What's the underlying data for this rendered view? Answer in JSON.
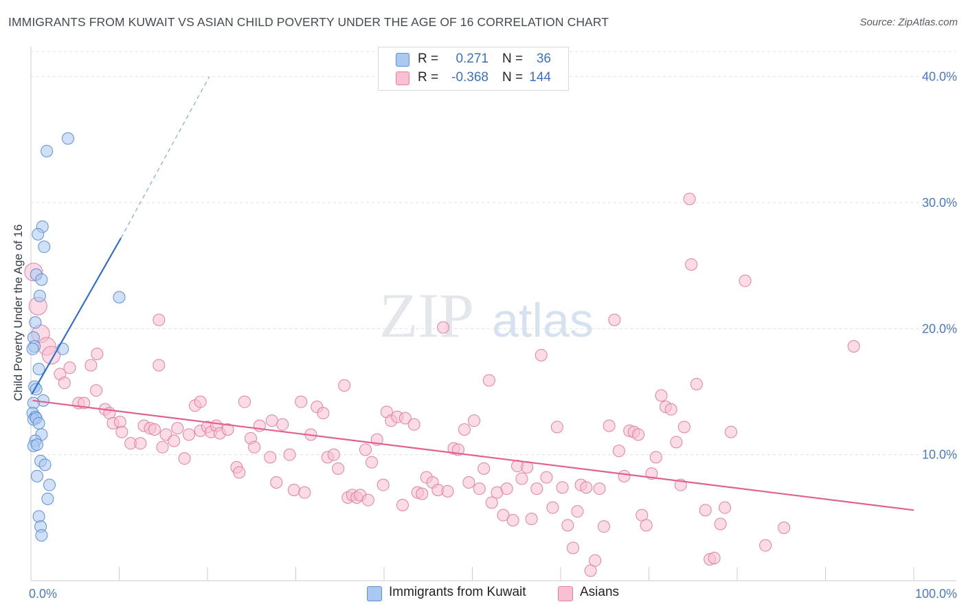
{
  "title": "IMMIGRANTS FROM KUWAIT VS ASIAN CHILD POVERTY UNDER THE AGE OF 16 CORRELATION CHART",
  "source": "Source: ZipAtlas.com",
  "watermark": {
    "zip": "ZIP",
    "atlas": "atlas"
  },
  "legend": {
    "rows": [
      {
        "r_label": "R =",
        "r_value": "0.271",
        "n_label": "N =",
        "n_value": "36",
        "color": "#aac8f0",
        "border": "#5b8fd6"
      },
      {
        "r_label": "R =",
        "r_value": "-0.368",
        "n_label": "N =",
        "n_value": "144",
        "color": "#f8c0d2",
        "border": "#e27fa2"
      }
    ]
  },
  "bottom_legend": [
    {
      "label": "Immigrants from Kuwait",
      "color": "#aac8f0",
      "border": "#5b8fd6"
    },
    {
      "label": "Asians",
      "color": "#f8c0d2",
      "border": "#e27fa2"
    }
  ],
  "chart_data": {
    "type": "scatter",
    "ylabel": "Child Poverty Under the Age of 16",
    "xlabel": "",
    "xlim": [
      0,
      100
    ],
    "ylim": [
      0,
      42
    ],
    "x_tick_labels": [
      {
        "value": 0,
        "label": "0.0%"
      },
      {
        "value": 100,
        "label": "100.0%"
      }
    ],
    "x_minor_ticks": [
      10,
      20,
      30,
      40,
      50,
      60,
      70,
      80,
      90,
      100
    ],
    "y_ticks": [
      {
        "value": 10,
        "label": "10.0%"
      },
      {
        "value": 20,
        "label": "20.0%"
      },
      {
        "value": 30,
        "label": "30.0%"
      },
      {
        "value": 40,
        "label": "40.0%"
      }
    ],
    "grid": true,
    "series": [
      {
        "name": "Immigrants from Kuwait",
        "color": "#aac8f0",
        "stroke": "#5b8fd6",
        "trend": {
          "x0": 0.1,
          "y0": 14.8,
          "x1": 10.2,
          "y1": 27.2,
          "dash_x1": 20.2,
          "dash_y1": 40.0,
          "color": "#2f6fd0"
        },
        "points": [
          [
            4.2,
            35.1
          ],
          [
            1.8,
            34.1
          ],
          [
            1.3,
            28.1
          ],
          [
            0.8,
            27.5
          ],
          [
            1.5,
            26.5
          ],
          [
            0.6,
            24.3
          ],
          [
            1.2,
            23.9
          ],
          [
            10.0,
            22.5
          ],
          [
            1.0,
            22.6
          ],
          [
            0.5,
            20.5
          ],
          [
            0.3,
            19.3
          ],
          [
            0.4,
            18.6
          ],
          [
            0.2,
            18.4
          ],
          [
            3.6,
            18.4
          ],
          [
            0.9,
            16.8
          ],
          [
            0.4,
            15.4
          ],
          [
            0.6,
            15.2
          ],
          [
            1.4,
            14.3
          ],
          [
            0.3,
            14.1
          ],
          [
            0.2,
            13.3
          ],
          [
            0.5,
            13.0
          ],
          [
            0.3,
            12.8
          ],
          [
            0.6,
            12.9
          ],
          [
            0.9,
            12.5
          ],
          [
            1.2,
            11.6
          ],
          [
            0.5,
            11.1
          ],
          [
            0.3,
            10.7
          ],
          [
            0.7,
            10.8
          ],
          [
            1.1,
            9.5
          ],
          [
            1.6,
            9.2
          ],
          [
            0.7,
            8.3
          ],
          [
            2.1,
            7.6
          ],
          [
            1.9,
            6.5
          ],
          [
            0.9,
            5.1
          ],
          [
            1.1,
            4.3
          ],
          [
            1.2,
            3.6
          ]
        ]
      },
      {
        "name": "Asians",
        "color": "#f8c0d2",
        "stroke": "#e27fa2",
        "trend": {
          "x0": 0.2,
          "y0": 14.3,
          "x1": 100,
          "y1": 5.6,
          "color": "#e26090"
        },
        "points": [
          [
            0.3,
            24.5
          ],
          [
            0.8,
            21.8
          ],
          [
            1.1,
            19.6
          ],
          [
            1.8,
            18.6
          ],
          [
            2.3,
            17.9
          ],
          [
            3.3,
            16.4
          ],
          [
            4.4,
            16.9
          ],
          [
            3.8,
            15.7
          ],
          [
            7.5,
            18.0
          ],
          [
            6.8,
            17.1
          ],
          [
            14.5,
            17.1
          ],
          [
            14.5,
            20.7
          ],
          [
            7.4,
            15.1
          ],
          [
            5.4,
            14.1
          ],
          [
            6.0,
            14.1
          ],
          [
            8.4,
            13.6
          ],
          [
            8.9,
            13.3
          ],
          [
            9.3,
            12.5
          ],
          [
            10.1,
            12.6
          ],
          [
            10.3,
            11.8
          ],
          [
            11.3,
            10.9
          ],
          [
            12.4,
            10.9
          ],
          [
            12.8,
            12.3
          ],
          [
            13.5,
            12.1
          ],
          [
            14.0,
            12.0
          ],
          [
            14.9,
            10.6
          ],
          [
            15.3,
            11.6
          ],
          [
            16.2,
            11.1
          ],
          [
            16.6,
            12.1
          ],
          [
            17.4,
            9.7
          ],
          [
            17.9,
            11.6
          ],
          [
            18.6,
            13.9
          ],
          [
            19.2,
            14.2
          ],
          [
            19.2,
            11.9
          ],
          [
            20.0,
            12.2
          ],
          [
            20.4,
            11.8
          ],
          [
            21.0,
            12.3
          ],
          [
            21.4,
            11.7
          ],
          [
            22.3,
            12.0
          ],
          [
            23.3,
            9.0
          ],
          [
            23.6,
            8.6
          ],
          [
            24.2,
            14.2
          ],
          [
            24.9,
            11.3
          ],
          [
            25.3,
            10.6
          ],
          [
            25.9,
            12.3
          ],
          [
            27.1,
            9.8
          ],
          [
            27.3,
            12.7
          ],
          [
            27.8,
            7.8
          ],
          [
            28.5,
            12.4
          ],
          [
            29.3,
            10.0
          ],
          [
            29.8,
            7.2
          ],
          [
            30.6,
            14.2
          ],
          [
            31.0,
            7.0
          ],
          [
            31.7,
            11.6
          ],
          [
            32.4,
            13.8
          ],
          [
            33.1,
            13.3
          ],
          [
            33.6,
            9.8
          ],
          [
            34.3,
            10.0
          ],
          [
            34.8,
            8.9
          ],
          [
            35.5,
            15.5
          ],
          [
            35.9,
            6.6
          ],
          [
            36.4,
            6.8
          ],
          [
            36.9,
            6.6
          ],
          [
            37.3,
            6.8
          ],
          [
            37.9,
            10.4
          ],
          [
            38.2,
            6.4
          ],
          [
            38.6,
            9.4
          ],
          [
            39.2,
            11.2
          ],
          [
            39.9,
            7.6
          ],
          [
            40.3,
            13.4
          ],
          [
            40.8,
            12.7
          ],
          [
            41.5,
            13.0
          ],
          [
            42.1,
            6.0
          ],
          [
            42.4,
            12.9
          ],
          [
            43.4,
            12.4
          ],
          [
            43.8,
            7.0
          ],
          [
            44.3,
            6.9
          ],
          [
            44.8,
            8.2
          ],
          [
            45.5,
            7.8
          ],
          [
            46.1,
            7.2
          ],
          [
            46.7,
            20.1
          ],
          [
            47.2,
            7.1
          ],
          [
            47.9,
            10.5
          ],
          [
            48.4,
            10.4
          ],
          [
            49.1,
            12.0
          ],
          [
            49.6,
            7.8
          ],
          [
            50.2,
            12.7
          ],
          [
            50.8,
            7.3
          ],
          [
            51.3,
            8.9
          ],
          [
            51.9,
            15.9
          ],
          [
            52.2,
            6.2
          ],
          [
            52.8,
            7.0
          ],
          [
            53.5,
            5.2
          ],
          [
            53.9,
            7.3
          ],
          [
            54.6,
            4.8
          ],
          [
            55.1,
            9.1
          ],
          [
            55.6,
            8.1
          ],
          [
            56.2,
            9.0
          ],
          [
            56.7,
            4.9
          ],
          [
            57.3,
            7.3
          ],
          [
            57.8,
            17.9
          ],
          [
            58.4,
            8.2
          ],
          [
            59.1,
            5.8
          ],
          [
            59.6,
            12.2
          ],
          [
            60.2,
            7.4
          ],
          [
            60.8,
            4.4
          ],
          [
            61.4,
            2.6
          ],
          [
            61.9,
            5.5
          ],
          [
            62.3,
            7.6
          ],
          [
            62.9,
            7.4
          ],
          [
            63.4,
            0.8
          ],
          [
            63.9,
            1.6
          ],
          [
            64.4,
            7.3
          ],
          [
            64.9,
            4.3
          ],
          [
            65.5,
            12.3
          ],
          [
            66.1,
            20.7
          ],
          [
            66.6,
            10.3
          ],
          [
            67.2,
            8.3
          ],
          [
            67.8,
            11.9
          ],
          [
            68.3,
            11.8
          ],
          [
            68.8,
            11.6
          ],
          [
            69.2,
            5.2
          ],
          [
            69.7,
            4.4
          ],
          [
            70.3,
            8.5
          ],
          [
            70.8,
            9.8
          ],
          [
            71.4,
            14.7
          ],
          [
            71.9,
            13.8
          ],
          [
            72.5,
            13.6
          ],
          [
            73.1,
            11.0
          ],
          [
            73.6,
            7.6
          ],
          [
            74.0,
            12.2
          ],
          [
            74.6,
            30.3
          ],
          [
            74.8,
            25.1
          ],
          [
            75.4,
            15.6
          ],
          [
            76.4,
            5.6
          ],
          [
            76.9,
            1.7
          ],
          [
            77.4,
            1.8
          ],
          [
            78.1,
            4.5
          ],
          [
            78.6,
            5.8
          ],
          [
            79.3,
            11.8
          ],
          [
            80.9,
            23.8
          ],
          [
            83.2,
            2.8
          ],
          [
            85.3,
            4.2
          ],
          [
            93.2,
            18.6
          ]
        ]
      }
    ]
  }
}
